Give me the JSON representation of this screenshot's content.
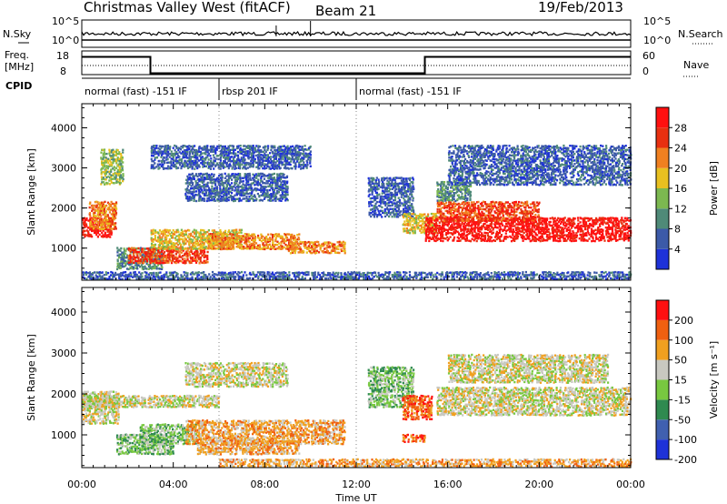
{
  "header": {
    "station": "Christmas Valley West (fitACF)",
    "beam": "Beam 21",
    "date": "19/Feb/2013"
  },
  "noise_panel": {
    "left_label": "N.Sky",
    "right_label": "N.Search",
    "left_ticks": [
      "10^5",
      "10^0"
    ],
    "right_ticks": [
      "10^5",
      "10^0"
    ]
  },
  "freq_panel": {
    "left_label_1": "Freq.",
    "left_label_2": "[MHz]",
    "right_label": "Nave",
    "left_ticks": [
      "18",
      "8"
    ],
    "right_ticks": [
      "60",
      "0"
    ],
    "freq_segments": [
      {
        "start_h": 0,
        "end_h": 3,
        "value_mhz": 15.5
      },
      {
        "start_h": 3,
        "end_h": 15,
        "value_mhz": 8.6
      },
      {
        "start_h": 15,
        "end_h": 24,
        "value_mhz": 15.5
      }
    ]
  },
  "cpid_panel": {
    "label": "CPID",
    "segments": [
      {
        "text": "normal (fast) -151 IF",
        "start_h": 0,
        "end_h": 6
      },
      {
        "text": "rbsp 201 IF",
        "start_h": 6,
        "end_h": 12
      },
      {
        "text": "normal (fast) -151 IF",
        "start_h": 12,
        "end_h": 24
      }
    ]
  },
  "chart_data": [
    {
      "type": "heatmap",
      "quantity": "Power",
      "ylabel": "Slant Range [km]",
      "y_ticks": [
        "1000",
        "2000",
        "3000",
        "4000"
      ],
      "ylim": [
        200,
        4600
      ],
      "xlim": [
        0,
        24
      ],
      "colorbar_label": "Power [dB]",
      "colorbar_ticks": [
        "4",
        "8",
        "12",
        "16",
        "20",
        "24",
        "28"
      ],
      "colorbar_colors": [
        "#1e32d8",
        "#3c5aa8",
        "#4f8a78",
        "#7cb850",
        "#e8c020",
        "#f08020",
        "#e83010",
        "#ff1010"
      ],
      "regions": [
        {
          "t0": 0.0,
          "t1": 1.3,
          "r0": 1300,
          "r1": 1800,
          "level": 7
        },
        {
          "t0": 0.3,
          "t1": 1.5,
          "r0": 1500,
          "r1": 2200,
          "level": 5
        },
        {
          "t0": 0.8,
          "t1": 1.8,
          "r0": 2600,
          "r1": 3500,
          "level": 3
        },
        {
          "t0": 1.5,
          "t1": 3.5,
          "r0": 500,
          "r1": 1050,
          "level": 2
        },
        {
          "t0": 2.0,
          "t1": 5.5,
          "r0": 650,
          "r1": 1050,
          "level": 6
        },
        {
          "t0": 3.0,
          "t1": 7.0,
          "r0": 1000,
          "r1": 1500,
          "level": 4
        },
        {
          "t0": 5.5,
          "t1": 9.5,
          "r0": 1000,
          "r1": 1400,
          "level": 5
        },
        {
          "t0": 9.0,
          "t1": 11.5,
          "r0": 900,
          "r1": 1200,
          "level": 5
        },
        {
          "t0": 4.5,
          "t1": 9.0,
          "r0": 2200,
          "r1": 2900,
          "level": 1
        },
        {
          "t0": 3.0,
          "t1": 10.0,
          "r0": 3000,
          "r1": 3600,
          "level": 1
        },
        {
          "t0": 12.5,
          "t1": 14.5,
          "r0": 1800,
          "r1": 2800,
          "level": 1
        },
        {
          "t0": 14.0,
          "t1": 15.5,
          "r0": 1400,
          "r1": 1900,
          "level": 4
        },
        {
          "t0": 15.0,
          "t1": 24.0,
          "r0": 1200,
          "r1": 1800,
          "level": 7
        },
        {
          "t0": 15.5,
          "t1": 20.0,
          "r0": 1700,
          "r1": 2200,
          "level": 6
        },
        {
          "t0": 15.5,
          "t1": 17.0,
          "r0": 2200,
          "r1": 2700,
          "level": 2
        },
        {
          "t0": 16.0,
          "t1": 24.0,
          "r0": 2600,
          "r1": 3600,
          "level": 1
        },
        {
          "t0": 0.0,
          "t1": 24.0,
          "r0": 250,
          "r1": 450,
          "level": 1
        }
      ]
    },
    {
      "type": "heatmap",
      "quantity": "Velocity",
      "ylabel": "Slant Range [km]",
      "y_ticks": [
        "1000",
        "2000",
        "3000",
        "4000"
      ],
      "ylim": [
        200,
        4600
      ],
      "xlim": [
        0,
        24
      ],
      "x_ticks": [
        "00:00",
        "04:00",
        "08:00",
        "12:00",
        "16:00",
        "20:00",
        "00:00"
      ],
      "xlabel": "Time UT",
      "colorbar_label": "Velocity [m s⁻¹]",
      "colorbar_ticks": [
        "200",
        "100",
        "50",
        "15",
        "-15",
        "-50",
        "-100",
        "-200"
      ],
      "colorbar_colors": [
        "#1e32d8",
        "#4060b0",
        "#2f8a50",
        "#78c840",
        "#c8c8c0",
        "#f0a020",
        "#f06010",
        "#ff1010"
      ],
      "regions": [
        {
          "t0": 0.0,
          "t1": 1.6,
          "r0": 1300,
          "r1": 2100,
          "level": 4
        },
        {
          "t0": 1.5,
          "t1": 4.0,
          "r0": 550,
          "r1": 1050,
          "level": 3
        },
        {
          "t0": 2.5,
          "t1": 5.0,
          "r0": 800,
          "r1": 1300,
          "level": 3
        },
        {
          "t0": 4.5,
          "t1": 11.5,
          "r0": 800,
          "r1": 1400,
          "level": 5
        },
        {
          "t0": 5.0,
          "t1": 9.5,
          "r0": 550,
          "r1": 900,
          "level": 5
        },
        {
          "t0": 0.0,
          "t1": 6.0,
          "r0": 1700,
          "r1": 2000,
          "level": 4
        },
        {
          "t0": 4.5,
          "t1": 9.0,
          "r0": 2200,
          "r1": 2800,
          "level": 4
        },
        {
          "t0": 12.5,
          "t1": 14.5,
          "r0": 1700,
          "r1": 2700,
          "level": 3
        },
        {
          "t0": 14.0,
          "t1": 15.3,
          "r0": 1400,
          "r1": 2000,
          "level": 6
        },
        {
          "t0": 15.5,
          "t1": 24.0,
          "r0": 1500,
          "r1": 2200,
          "level": 4
        },
        {
          "t0": 16.0,
          "t1": 23.0,
          "r0": 2300,
          "r1": 3000,
          "level": 4
        },
        {
          "t0": 6.0,
          "t1": 24.0,
          "r0": 250,
          "r1": 450,
          "level": 5
        },
        {
          "t0": 14.0,
          "t1": 15.0,
          "r0": 850,
          "r1": 1050,
          "level": 6
        }
      ]
    }
  ]
}
